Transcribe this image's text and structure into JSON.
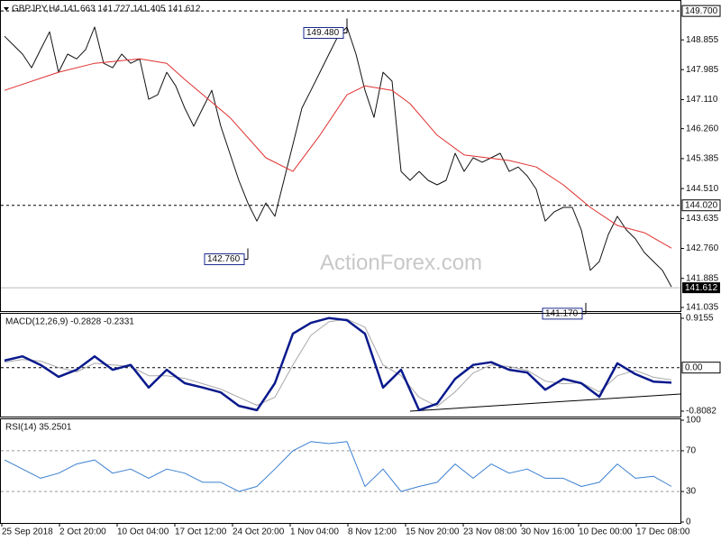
{
  "chart_data": [
    {
      "type": "line",
      "title": "GBPJPY,H4  141.663 141.727 141.405 141.612",
      "watermark": "ActionForex.com",
      "ylim": [
        140.93,
        150.02
      ],
      "yticks": [
        {
          "value": 148.855,
          "label": "148.855"
        },
        {
          "value": 147.985,
          "label": "147.985"
        },
        {
          "value": 147.11,
          "label": "147.110"
        },
        {
          "value": 146.26,
          "label": "146.260"
        },
        {
          "value": 145.385,
          "label": "145.385"
        },
        {
          "value": 144.51,
          "label": "144.510"
        },
        {
          "value": 143.635,
          "label": "143.635"
        },
        {
          "value": 142.76,
          "label": "142.760"
        },
        {
          "value": 141.885,
          "label": "141.885"
        },
        {
          "value": 141.035,
          "label": "141.035"
        }
      ],
      "levels": [
        {
          "value": 149.7,
          "label": "149.700"
        },
        {
          "value": 144.02,
          "label": "144.020"
        }
      ],
      "last_price": {
        "value": 141.612,
        "label": "141.612"
      },
      "annotations": [
        {
          "x": 38,
          "value": 149.48,
          "label": "149.480"
        },
        {
          "x": 27,
          "value": 142.76,
          "label": "142.760"
        },
        {
          "x": 64.5,
          "value": 141.17,
          "label": "141.170"
        }
      ],
      "series": [
        {
          "color": "#111111",
          "values": [
            148.96,
            148.7,
            148.44,
            148.04,
            148.57,
            149.09,
            147.91,
            148.44,
            148.3,
            148.57,
            149.23,
            148.17,
            148.04,
            148.44,
            148.17,
            148.3,
            147.12,
            147.25,
            147.91,
            147.51,
            146.86,
            146.33,
            146.86,
            147.38,
            146.33,
            145.54,
            144.75,
            144.09,
            143.56,
            144.09,
            143.7,
            144.75,
            145.8,
            146.86,
            147.38,
            147.91,
            148.44,
            148.96,
            149.23,
            148.44,
            147.38,
            146.59,
            147.91,
            147.65,
            145.01,
            144.75,
            145.01,
            144.75,
            144.62,
            144.75,
            145.54,
            145.01,
            145.41,
            145.28,
            145.41,
            145.54,
            145.01,
            145.14,
            144.88,
            144.49,
            143.56,
            143.83,
            143.96,
            143.96,
            143.3,
            142.12,
            142.38,
            143.17,
            143.7,
            143.3,
            143.04,
            142.64,
            142.38,
            142.12,
            141.64
          ]
        },
        {
          "color": "#e03030",
          "x": [
            0,
            6,
            10,
            15,
            18,
            20,
            25,
            29,
            32,
            35,
            38,
            40,
            43,
            45,
            48,
            51,
            56,
            59,
            62,
            65,
            68,
            71,
            74
          ],
          "values": [
            147.38,
            147.91,
            148.17,
            148.3,
            148.17,
            147.7,
            146.59,
            145.41,
            145.01,
            146.07,
            147.25,
            147.51,
            147.38,
            146.99,
            146.07,
            145.49,
            145.33,
            145.14,
            144.62,
            143.96,
            143.43,
            143.22,
            142.77
          ]
        }
      ]
    },
    {
      "type": "line",
      "title": "MACD(12,26,9) -0.2828 -0.2331",
      "ylim": [
        -0.909,
        1.016
      ],
      "yticks": [
        0.9155,
        -0.8082
      ],
      "levels": [
        {
          "value": 0,
          "label": "0.00"
        }
      ],
      "x": [
        0,
        2,
        4,
        6,
        8,
        10,
        12,
        14,
        16,
        18,
        20,
        22,
        24,
        26,
        28,
        30,
        32,
        34,
        36,
        38,
        40,
        42,
        44,
        46,
        48,
        50,
        52,
        54,
        56,
        58,
        60,
        62,
        64,
        66,
        68,
        70,
        72,
        74
      ],
      "series": [
        {
          "color": "#a8a8a8",
          "width": 1,
          "values": [
            0.1,
            0.15,
            0.12,
            0.0,
            -0.08,
            0.08,
            0.05,
            0.02,
            -0.15,
            -0.15,
            -0.2,
            -0.3,
            -0.4,
            -0.55,
            -0.7,
            -0.55,
            0.05,
            0.6,
            0.85,
            0.9,
            0.75,
            0.05,
            -0.15,
            -0.55,
            -0.72,
            -0.45,
            -0.1,
            0.05,
            0.02,
            -0.05,
            -0.25,
            -0.3,
            -0.28,
            -0.45,
            -0.15,
            -0.05,
            -0.18,
            -0.23
          ]
        },
        {
          "color": "#0a1a8c",
          "width": 2.5,
          "values": [
            0.13,
            0.21,
            0.05,
            -0.17,
            -0.04,
            0.21,
            -0.04,
            0.05,
            -0.37,
            -0.04,
            -0.29,
            -0.37,
            -0.46,
            -0.71,
            -0.79,
            -0.29,
            0.63,
            0.83,
            0.92,
            0.88,
            0.63,
            -0.37,
            -0.04,
            -0.79,
            -0.67,
            -0.21,
            0.05,
            0.1,
            -0.04,
            -0.09,
            -0.41,
            -0.21,
            -0.29,
            -0.54,
            0.08,
            -0.12,
            -0.26,
            -0.28
          ]
        }
      ]
    },
    {
      "type": "line",
      "title": "RSI(14) 35.2501",
      "ylim": [
        -0.9,
        101.8
      ],
      "yticks": [
        100,
        70,
        30,
        0
      ],
      "levels": [
        70,
        30
      ],
      "xlim": [
        -0.5,
        75
      ],
      "xticks": [
        {
          "value": -0.3,
          "label": "25 Sep 2018"
        },
        {
          "value": 6.1,
          "label": "2 Oct 20:00"
        },
        {
          "value": 12.5,
          "label": "10 Oct 04:00"
        },
        {
          "value": 18.9,
          "label": "17 Oct 12:00"
        },
        {
          "value": 25.3,
          "label": "24 Oct 20:00"
        },
        {
          "value": 31.7,
          "label": "1 Nov 04:00"
        },
        {
          "value": 38.1,
          "label": "8 Nov 12:00"
        },
        {
          "value": 44.5,
          "label": "15 Nov 20:00"
        },
        {
          "value": 50.9,
          "label": "23 Nov 08:00"
        },
        {
          "value": 57.3,
          "label": "30 Nov 16:00"
        },
        {
          "value": 63.7,
          "label": "10 Dec 00:00"
        },
        {
          "value": 70.1,
          "label": "17 Dec 08:00"
        }
      ],
      "x": [
        0,
        2,
        4,
        6,
        8,
        10,
        12,
        14,
        16,
        18,
        20,
        22,
        24,
        26,
        28,
        30,
        32,
        34,
        36,
        38,
        40,
        42,
        44,
        46,
        48,
        50,
        52,
        54,
        56,
        58,
        60,
        62,
        64,
        66,
        68,
        70,
        72,
        74
      ],
      "series": [
        {
          "color": "#3a7fd0",
          "width": 1,
          "values": [
            61,
            52,
            43,
            48,
            57,
            61,
            48,
            52,
            43,
            52,
            48,
            39,
            39,
            30,
            35,
            52,
            70,
            79,
            77,
            79,
            35,
            52,
            30,
            35,
            39,
            57,
            43,
            57,
            48,
            52,
            43,
            43,
            35,
            39,
            57,
            43,
            45,
            35
          ]
        }
      ]
    }
  ]
}
